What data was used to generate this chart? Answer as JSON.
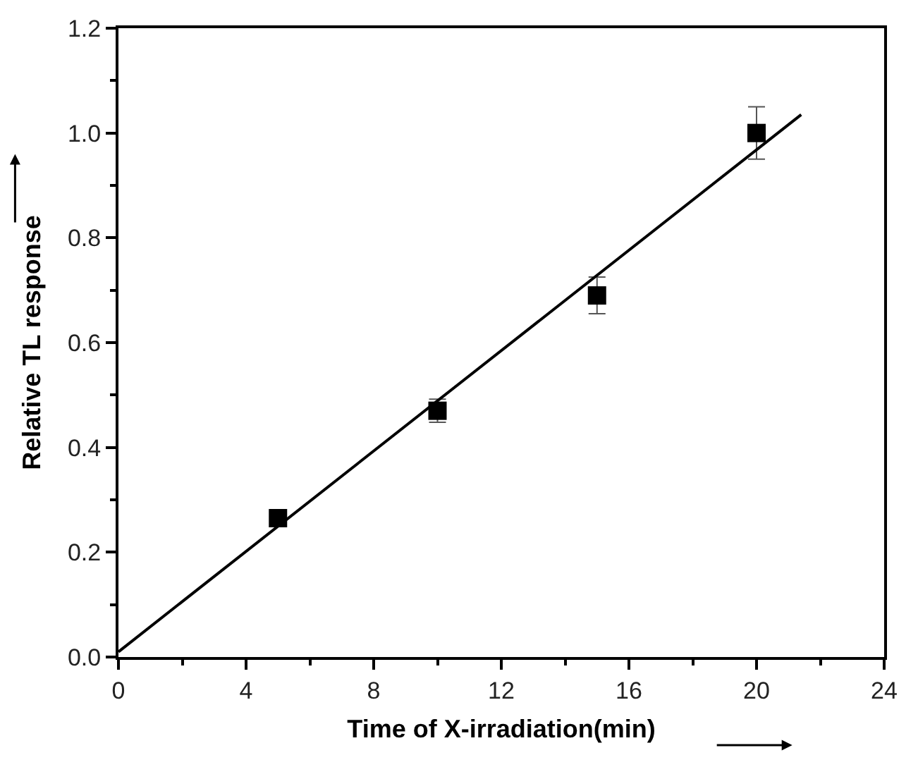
{
  "chart_data": {
    "type": "scatter",
    "xlabel": "Time of X-irradiation(min)",
    "ylabel": "Relative TL response",
    "xlim": [
      0,
      24
    ],
    "xticks": [
      0,
      4,
      8,
      12,
      16,
      20,
      24
    ],
    "ylim": [
      0,
      1.2
    ],
    "yticks": [
      {
        "value": 0,
        "label": "0.0"
      },
      0.2,
      0.4,
      0.6,
      0.8,
      {
        "value": 1,
        "label": "1.0"
      },
      1.2
    ],
    "series": [
      {
        "color": "#000000",
        "marker": "square",
        "x": [
          5,
          10,
          15,
          20
        ],
        "values": [
          0.265,
          0.47,
          0.69,
          1.0
        ],
        "errors": [
          null,
          0.022,
          0.035,
          0.05
        ]
      },
      {
        "type": "line",
        "color": "#000000",
        "marker": "none",
        "line_style": "solid",
        "x": [
          0,
          21.4
        ],
        "values": [
          0.01,
          1.035
        ]
      }
    ]
  }
}
